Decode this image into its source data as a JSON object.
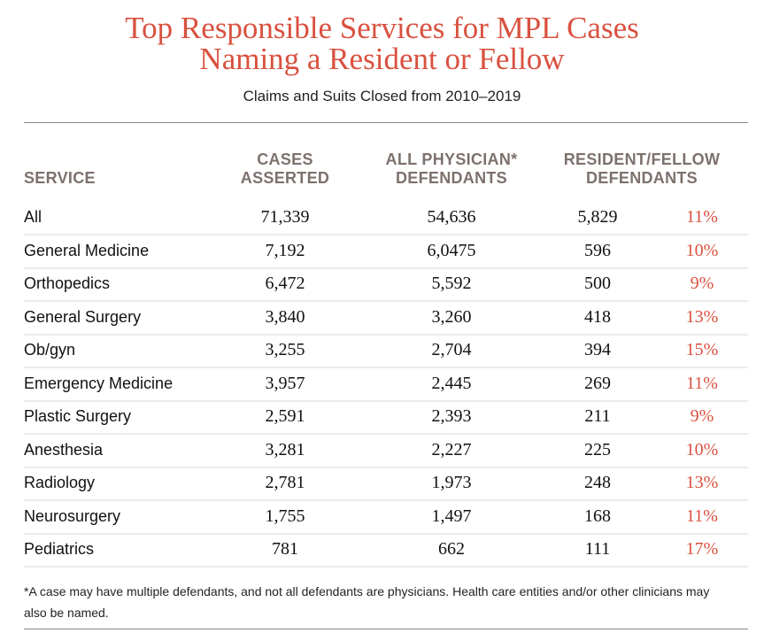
{
  "title": "Top Responsible Services for MPL Cases Naming a Resident or Fellow",
  "subtitle": "Claims and Suits Closed from 2010–2019",
  "columns": {
    "service": "SERVICE",
    "cases": "CASES ASSERTED",
    "all_physician": "ALL PHYSICIAN* DEFENDANTS",
    "resident": "RESIDENT/FELLOW DEFENDANTS"
  },
  "rows": [
    {
      "service": "All",
      "cases": "71,339",
      "all": "54,636",
      "resident": "5,829",
      "pct": "11%"
    },
    {
      "service": "General Medicine",
      "cases": "7,192",
      "all": "6,0475",
      "resident": "596",
      "pct": "10%"
    },
    {
      "service": "Orthopedics",
      "cases": "6,472",
      "all": "5,592",
      "resident": "500",
      "pct": "9%"
    },
    {
      "service": "General Surgery",
      "cases": "3,840",
      "all": "3,260",
      "resident": "418",
      "pct": "13%"
    },
    {
      "service": "Ob/gyn",
      "cases": "3,255",
      "all": "2,704",
      "resident": "394",
      "pct": "15%"
    },
    {
      "service": "Emergency Medicine",
      "cases": "3,957",
      "all": "2,445",
      "resident": "269",
      "pct": "11%"
    },
    {
      "service": "Plastic Surgery",
      "cases": "2,591",
      "all": "2,393",
      "resident": "211",
      "pct": "9%"
    },
    {
      "service": "Anesthesia",
      "cases": "3,281",
      "all": "2,227",
      "resident": "225",
      "pct": "10%"
    },
    {
      "service": "Radiology",
      "cases": "2,781",
      "all": "1,973",
      "resident": "248",
      "pct": "13%"
    },
    {
      "service": "Neurosurgery",
      "cases": "1,755",
      "all": "1,497",
      "resident": "168",
      "pct": "11%"
    },
    {
      "service": "Pediatrics",
      "cases": "781",
      "all": "662",
      "resident": "111",
      "pct": "17%"
    }
  ],
  "footnote": "*A case may have multiple defendants, and not all defendants are physicians. Health care entities and/or other clinicians may also be named.",
  "colors": {
    "accent": "#d9513f",
    "header": "#7d716d"
  }
}
